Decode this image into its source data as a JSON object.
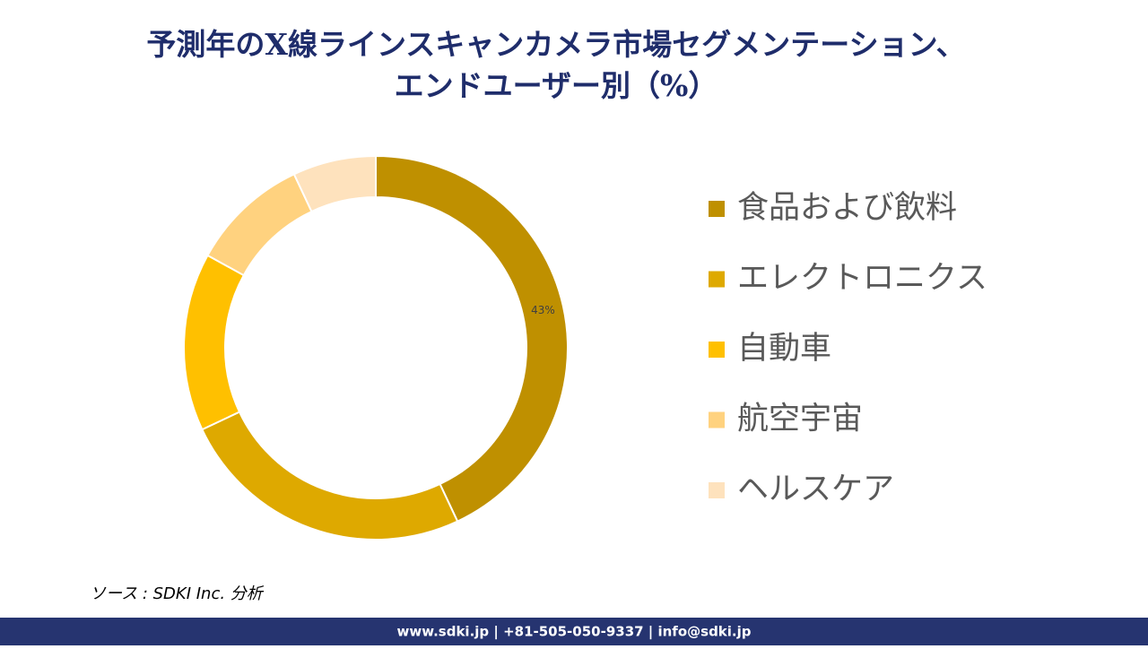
{
  "chart_data": {
    "type": "donut",
    "title": [
      "予測年のX線ラインスキャンカメラ市場セグメンテーション、",
      "エンドユーザー別（%）"
    ],
    "categories": [
      "食品および飲料",
      "エレクトロニクス",
      "自動車",
      "航空宇宙",
      "ヘルスケア"
    ],
    "values": [
      43,
      25,
      15,
      10,
      7
    ],
    "value_labels": [
      "43%",
      null,
      null,
      null,
      null
    ],
    "colors": [
      "#bf9000",
      "#dea900",
      "#ffc000",
      "#ffd27f",
      "#fee2bd"
    ],
    "legend": "right"
  },
  "source": "ソース : SDKI Inc. 分析",
  "footer": "www.sdki.jp | +81-505-050-9337 | info@sdki.jp"
}
